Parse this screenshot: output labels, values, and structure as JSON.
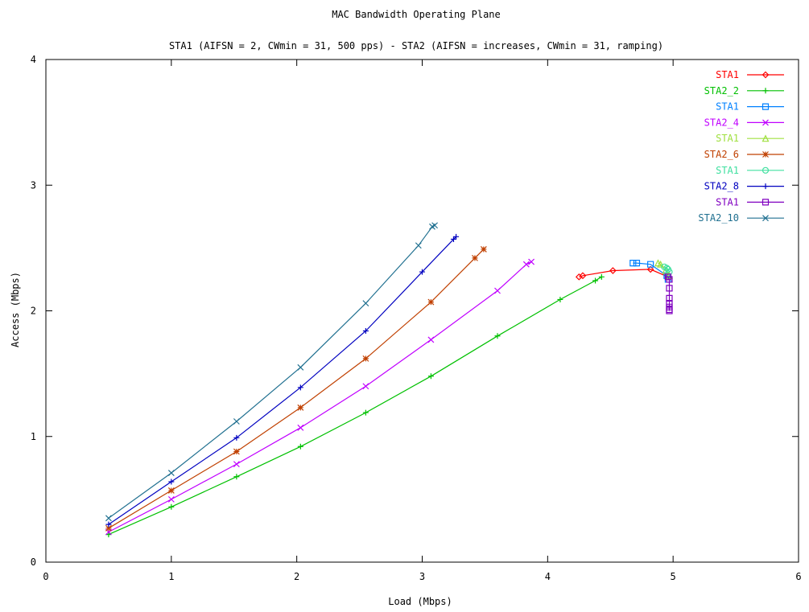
{
  "chart_data": {
    "type": "line",
    "title": "MAC Bandwidth Operating Plane",
    "subtitle": "STA1 (AIFSN = 2, CWmin = 31, 500 pps) - STA2 (AIFSN = increases, CWmin = 31, ramping)",
    "xlabel": "Load (Mbps)",
    "ylabel": "Access (Mbps)",
    "xlim": [
      0,
      6
    ],
    "ylim": [
      0,
      4
    ],
    "x_ticks": [
      "0",
      "1",
      "2",
      "3",
      "4",
      "5",
      "6"
    ],
    "y_ticks": [
      "0",
      "1",
      "2",
      "3",
      "4"
    ],
    "grid": false,
    "legend_position": "top-right",
    "series": [
      {
        "name": "STA1",
        "color": "#ff0000",
        "marker": "diamond",
        "x": [
          4.25,
          4.28,
          4.52,
          4.82,
          4.96
        ],
        "y": [
          2.27,
          2.28,
          2.32,
          2.33,
          2.27
        ]
      },
      {
        "name": "STA2_2",
        "color": "#00c000",
        "marker": "plus",
        "x": [
          0.5,
          1.0,
          1.52,
          2.03,
          2.55,
          3.07,
          3.6,
          4.1,
          4.38,
          4.43
        ],
        "y": [
          0.22,
          0.44,
          0.68,
          0.92,
          1.19,
          1.48,
          1.8,
          2.09,
          2.24,
          2.27
        ]
      },
      {
        "name": "STA1",
        "color": "#0080ff",
        "marker": "square",
        "x": [
          4.68,
          4.71,
          4.82,
          4.95,
          4.96
        ],
        "y": [
          2.38,
          2.38,
          2.37,
          2.28,
          2.25
        ]
      },
      {
        "name": "STA2_4",
        "color": "#c000ff",
        "marker": "x",
        "x": [
          0.5,
          1.0,
          1.52,
          2.03,
          2.55,
          3.07,
          3.6,
          3.83,
          3.87
        ],
        "y": [
          0.24,
          0.5,
          0.78,
          1.07,
          1.4,
          1.77,
          2.16,
          2.37,
          2.39
        ]
      },
      {
        "name": "STA1",
        "color": "#a0e040",
        "marker": "triangle",
        "x": [
          4.88,
          4.9,
          4.94,
          4.97
        ],
        "y": [
          2.38,
          2.37,
          2.32,
          2.28
        ]
      },
      {
        "name": "STA2_6",
        "color": "#c04000",
        "marker": "star",
        "x": [
          0.5,
          1.0,
          1.52,
          2.03,
          2.55,
          3.07,
          3.42,
          3.49
        ],
        "y": [
          0.27,
          0.57,
          0.88,
          1.23,
          1.62,
          2.07,
          2.42,
          2.49
        ]
      },
      {
        "name": "STA1",
        "color": "#40e0a0",
        "marker": "circle",
        "x": [
          4.93,
          4.95,
          4.96,
          4.97
        ],
        "y": [
          2.35,
          2.34,
          2.33,
          2.31
        ]
      },
      {
        "name": "STA2_8",
        "color": "#0000c0",
        "marker": "plus",
        "x": [
          0.5,
          1.0,
          1.52,
          2.03,
          2.55,
          3.0,
          3.25,
          3.27
        ],
        "y": [
          0.3,
          0.64,
          0.99,
          1.39,
          1.84,
          2.31,
          2.57,
          2.59
        ]
      },
      {
        "name": "STA1",
        "color": "#8000c0",
        "marker": "square",
        "x": [
          4.96,
          4.97,
          4.97,
          4.97,
          4.97,
          4.97,
          4.97,
          4.97
        ],
        "y": [
          2.27,
          2.25,
          2.18,
          2.1,
          2.06,
          2.03,
          2.01,
          2.0
        ]
      },
      {
        "name": "STA2_10",
        "color": "#207090",
        "marker": "x",
        "x": [
          0.5,
          1.0,
          1.52,
          2.03,
          2.55,
          2.97,
          3.08,
          3.1
        ],
        "y": [
          0.35,
          0.71,
          1.12,
          1.55,
          2.06,
          2.52,
          2.67,
          2.68
        ]
      }
    ]
  }
}
